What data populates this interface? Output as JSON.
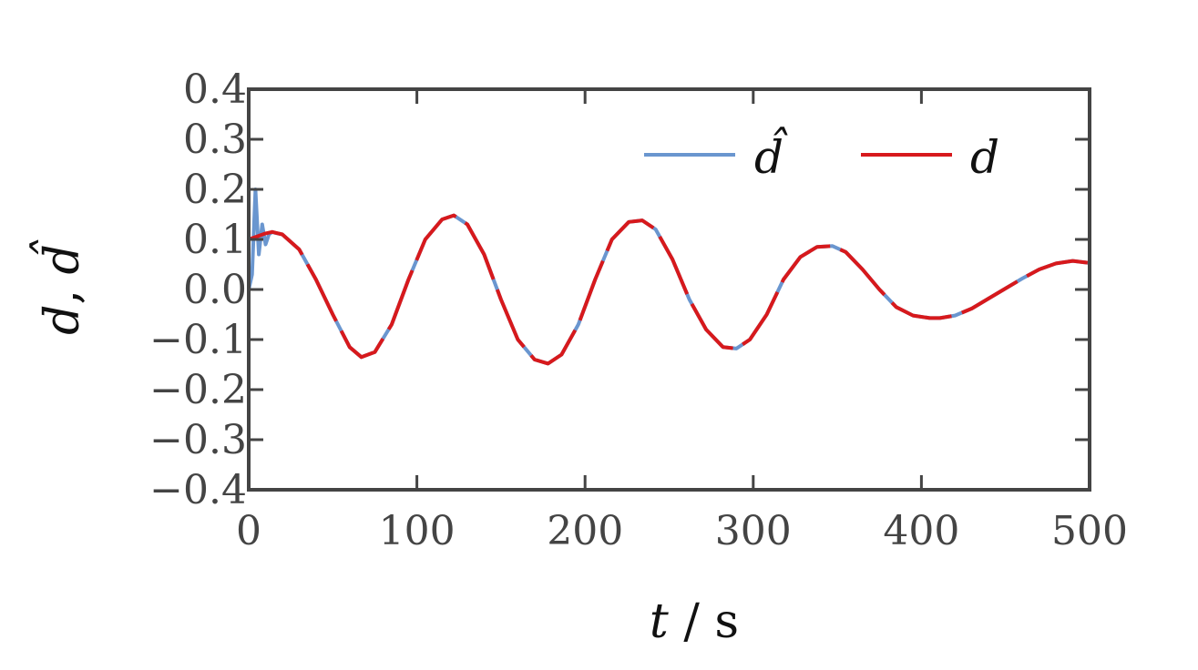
{
  "chart_data": {
    "type": "line",
    "title": "",
    "xlabel": {
      "var": "t",
      "sep": " / ",
      "unit": "s"
    },
    "ylabel": {
      "var1": "d",
      "sep": ", ",
      "var2": "d̂"
    },
    "xlim": [
      0,
      500
    ],
    "ylim": [
      -0.4,
      0.4
    ],
    "xticks": [
      0,
      100,
      200,
      300,
      400,
      500
    ],
    "xtick_labels": [
      "0",
      "100",
      "200",
      "300",
      "400",
      "500"
    ],
    "yticks": [
      -0.4,
      -0.3,
      -0.2,
      -0.1,
      0.0,
      0.1,
      0.2,
      0.3,
      0.4
    ],
    "ytick_labels": [
      "−0.4",
      "−0.3",
      "−0.2",
      "−0.1",
      "0.0",
      "0.1",
      "0.2",
      "0.3",
      "0.4"
    ],
    "grid": false,
    "legend_position": "top-right",
    "series": [
      {
        "name": "d̂",
        "color": "#6a96cf",
        "x": [
          0,
          2,
          4,
          6,
          8,
          10,
          12,
          14,
          16,
          20,
          30,
          40,
          50,
          60,
          67,
          75,
          85,
          95,
          105,
          115,
          122,
          130,
          140,
          150,
          160,
          170,
          178,
          186,
          196,
          206,
          216,
          226,
          234,
          242,
          252,
          262,
          272,
          282,
          290,
          298,
          308,
          318,
          328,
          338,
          347,
          355,
          365,
          375,
          385,
          395,
          405,
          411,
          420,
          430,
          440,
          450,
          460,
          470,
          480,
          490,
          500
        ],
        "y": [
          0.0,
          0.03,
          0.2,
          0.07,
          0.13,
          0.09,
          0.11,
          0.115,
          0.113,
          0.11,
          0.08,
          0.02,
          -0.05,
          -0.115,
          -0.135,
          -0.125,
          -0.07,
          0.02,
          0.1,
          0.14,
          0.148,
          0.13,
          0.07,
          -0.02,
          -0.1,
          -0.14,
          -0.148,
          -0.13,
          -0.07,
          0.02,
          0.1,
          0.135,
          0.138,
          0.12,
          0.06,
          -0.02,
          -0.08,
          -0.115,
          -0.118,
          -0.1,
          -0.05,
          0.02,
          0.065,
          0.085,
          0.087,
          0.075,
          0.04,
          0.0,
          -0.035,
          -0.052,
          -0.057,
          -0.057,
          -0.052,
          -0.038,
          -0.018,
          0.002,
          0.022,
          0.04,
          0.052,
          0.057,
          0.053
        ]
      },
      {
        "name": "d",
        "color": "#d7191c",
        "x": [
          0,
          10,
          14,
          20,
          30,
          40,
          50,
          60,
          67,
          75,
          85,
          95,
          105,
          115,
          122,
          130,
          140,
          150,
          160,
          170,
          178,
          186,
          196,
          206,
          216,
          226,
          234,
          242,
          252,
          262,
          272,
          282,
          290,
          298,
          308,
          318,
          328,
          338,
          347,
          355,
          365,
          375,
          385,
          395,
          405,
          411,
          420,
          430,
          440,
          450,
          460,
          470,
          480,
          490,
          500
        ],
        "y": [
          0.1,
          0.112,
          0.115,
          0.11,
          0.08,
          0.02,
          -0.05,
          -0.115,
          -0.135,
          -0.125,
          -0.07,
          0.02,
          0.1,
          0.14,
          0.148,
          0.13,
          0.07,
          -0.02,
          -0.1,
          -0.14,
          -0.148,
          -0.13,
          -0.07,
          0.02,
          0.1,
          0.135,
          0.138,
          0.12,
          0.06,
          -0.02,
          -0.08,
          -0.115,
          -0.118,
          -0.1,
          -0.05,
          0.02,
          0.065,
          0.085,
          0.087,
          0.075,
          0.04,
          0.0,
          -0.035,
          -0.052,
          -0.057,
          -0.057,
          -0.052,
          -0.038,
          -0.018,
          0.002,
          0.022,
          0.04,
          0.052,
          0.057,
          0.053
        ],
        "dashed": true
      }
    ]
  }
}
